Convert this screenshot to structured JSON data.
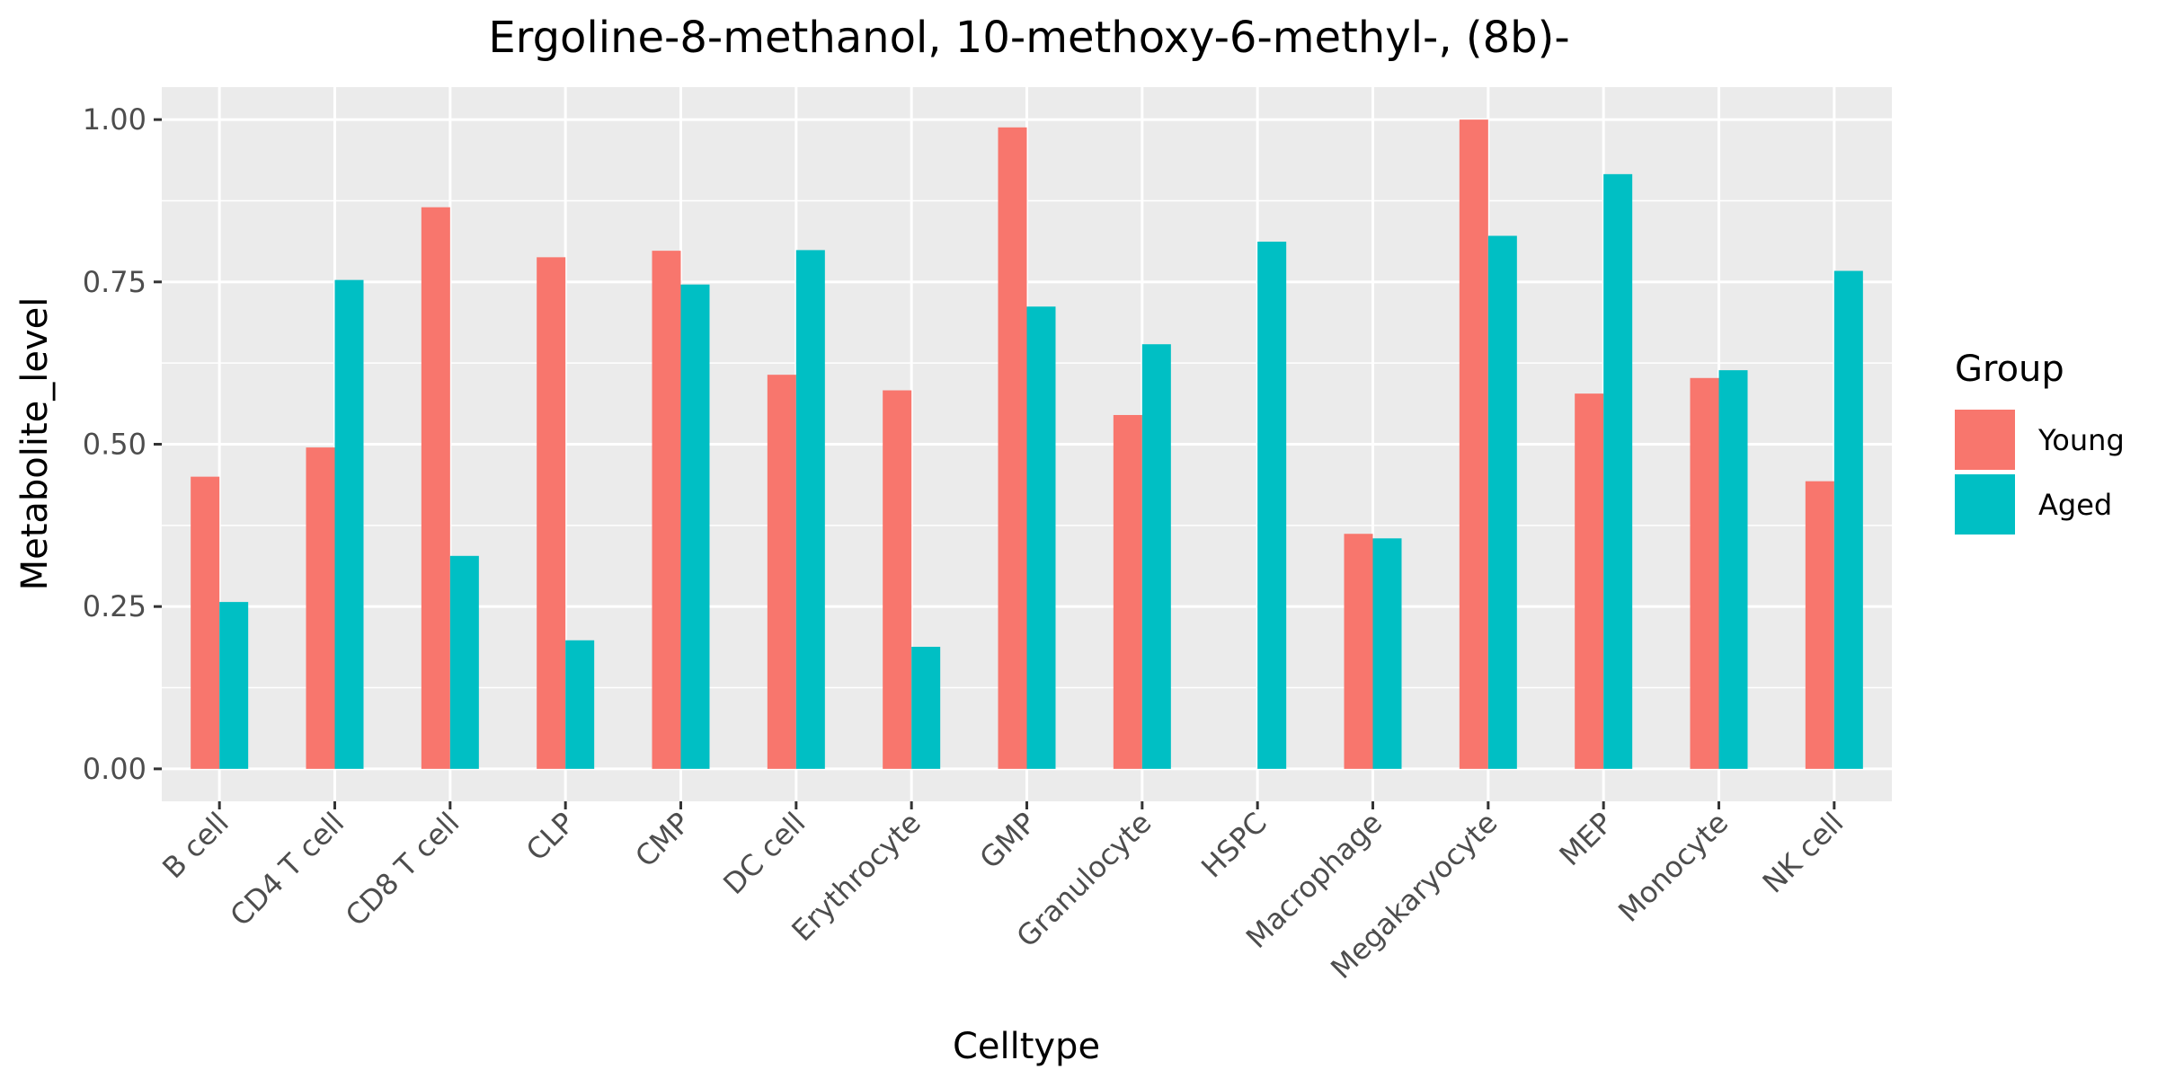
{
  "chart_data": {
    "type": "bar",
    "title": "Ergoline-8-methanol, 10-methoxy-6-methyl-, (8b)-",
    "xlabel": "Celltype",
    "ylabel": "Metabolite_level",
    "ylim": [
      -0.05,
      1.05
    ],
    "yticks": [
      "0.00",
      "0.25",
      "0.50",
      "0.75",
      "1.00"
    ],
    "ytick_values": [
      0,
      0.25,
      0.5,
      0.75,
      1.0
    ],
    "grid": true,
    "legend_position": "right",
    "legend_title": "Group",
    "categories": [
      "B cell",
      "CD4 T cell",
      "CD8 T cell",
      "CLP",
      "CMP",
      "DC cell",
      "Erythrocyte",
      "GMP",
      "Granulocyte",
      "HSPC",
      "Macrophage",
      "Megakaryocyte",
      "MEP",
      "Monocyte",
      "NK cell"
    ],
    "series": [
      {
        "name": "Young",
        "color": "#F8766D",
        "values": [
          0.45,
          0.495,
          0.865,
          0.788,
          0.798,
          0.607,
          0.583,
          0.988,
          0.545,
          0.0,
          0.362,
          1.0,
          0.578,
          0.602,
          0.443
        ]
      },
      {
        "name": "Aged",
        "color": "#00BFC4",
        "values": [
          0.257,
          0.753,
          0.328,
          0.198,
          0.746,
          0.799,
          0.188,
          0.712,
          0.654,
          0.812,
          0.355,
          0.821,
          0.916,
          0.614,
          0.767
        ]
      }
    ]
  }
}
